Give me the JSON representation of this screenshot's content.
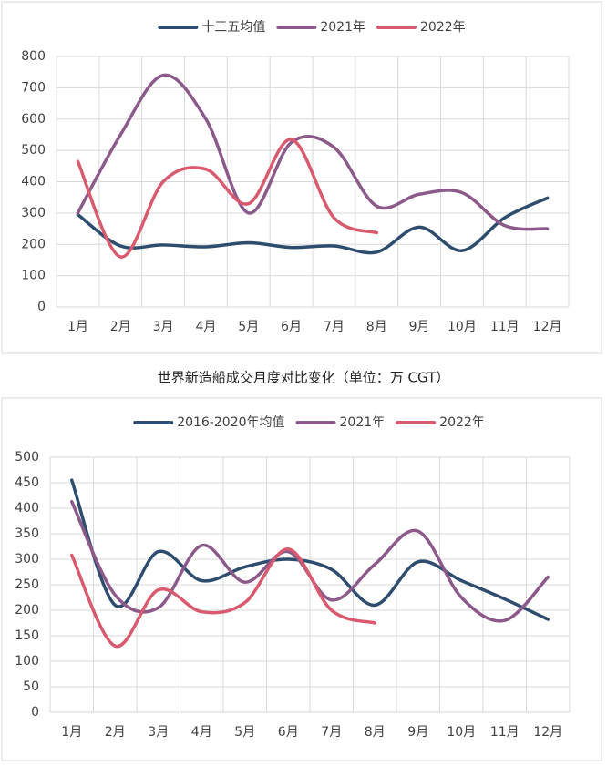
{
  "caption": "世界新造船成交月度对比变化（单位：万 CGT）",
  "chart_data": [
    {
      "type": "line",
      "categories": [
        "1月",
        "2月",
        "3月",
        "4月",
        "5月",
        "6月",
        "7月",
        "8月",
        "9月",
        "10月",
        "11月",
        "12月"
      ],
      "series": [
        {
          "name": "十三五均值",
          "color": "#2e4d6e",
          "values": [
            295,
            195,
            198,
            192,
            205,
            190,
            195,
            175,
            255,
            180,
            285,
            348
          ]
        },
        {
          "name": "2021年",
          "color": "#8b5a8a",
          "values": [
            300,
            550,
            740,
            600,
            300,
            525,
            510,
            322,
            360,
            365,
            260,
            250
          ]
        },
        {
          "name": "2022年",
          "color": "#d95a6e",
          "values": [
            465,
            160,
            400,
            440,
            330,
            535,
            285,
            237,
            null,
            null,
            null,
            null
          ]
        }
      ],
      "ylim": [
        0,
        800
      ],
      "yticks": [
        0,
        100,
        200,
        300,
        400,
        500,
        600,
        700,
        800
      ],
      "grid": true,
      "legend": "top"
    },
    {
      "type": "line",
      "categories": [
        "1月",
        "2月",
        "3月",
        "4月",
        "5月",
        "6月",
        "7月",
        "8月",
        "9月",
        "10月",
        "11月",
        "12月"
      ],
      "series": [
        {
          "name": "2016-2020年均值",
          "color": "#2e4d6e",
          "values": [
            455,
            210,
            315,
            258,
            285,
            300,
            280,
            210,
            295,
            258,
            222,
            182
          ]
        },
        {
          "name": "2021年",
          "color": "#8b5a8a",
          "values": [
            413,
            230,
            205,
            327,
            255,
            315,
            220,
            290,
            355,
            225,
            180,
            265
          ]
        },
        {
          "name": "2022年",
          "color": "#d95a6e",
          "values": [
            308,
            130,
            240,
            197,
            215,
            320,
            200,
            175,
            null,
            null,
            null,
            null
          ]
        }
      ],
      "ylim": [
        0,
        500
      ],
      "yticks": [
        0,
        50,
        100,
        150,
        200,
        250,
        300,
        350,
        400,
        450,
        500
      ],
      "grid": true,
      "legend": "top"
    }
  ]
}
